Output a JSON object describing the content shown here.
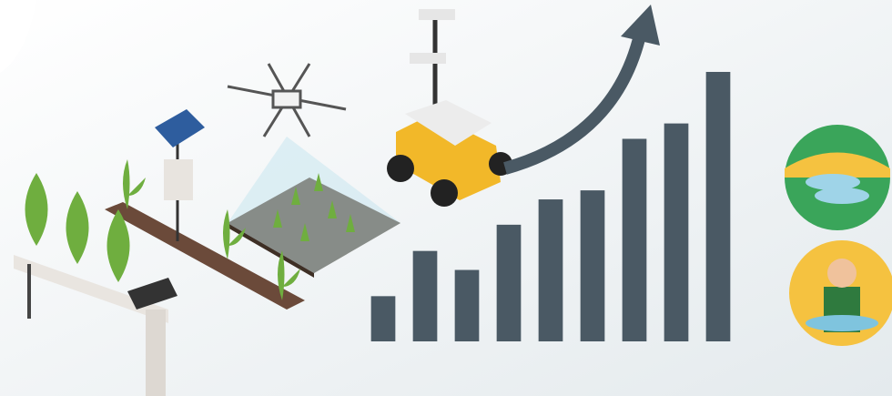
{
  "chart_data": {
    "type": "bar",
    "values": [
      50,
      100,
      79,
      129,
      157,
      167,
      224,
      241,
      298
    ],
    "color": "#4a5964",
    "ylim": [
      0,
      300
    ]
  }
}
